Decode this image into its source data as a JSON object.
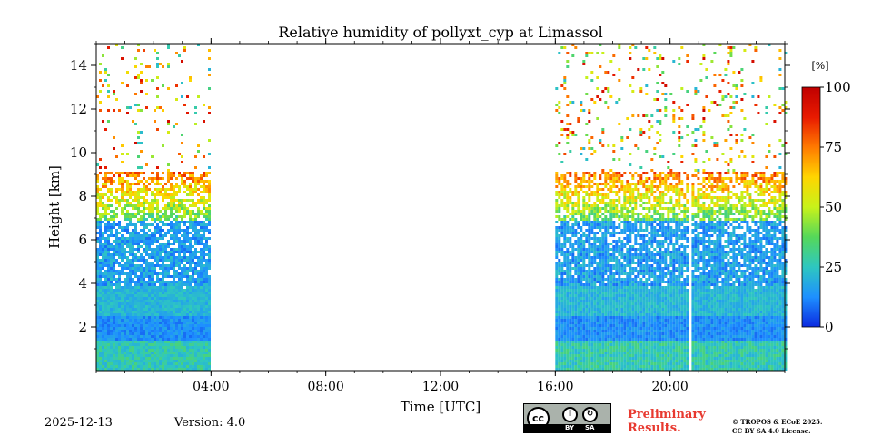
{
  "chart_data": {
    "type": "heatmap",
    "title": "Relative humidity of pollyxt_cyp at Limassol",
    "xlabel": "Time [UTC]",
    "ylabel": "Height [km]",
    "xlim_hours": [
      0,
      24
    ],
    "ylim_km": [
      0,
      15
    ],
    "x_ticks": [
      {
        "hour": 4,
        "label": "04:00"
      },
      {
        "hour": 8,
        "label": "08:00"
      },
      {
        "hour": 12,
        "label": "12:00"
      },
      {
        "hour": 16,
        "label": "16:00"
      },
      {
        "hour": 20,
        "label": "20:00"
      }
    ],
    "y_ticks": [
      {
        "km": 2,
        "label": "2"
      },
      {
        "km": 4,
        "label": "4"
      },
      {
        "km": 6,
        "label": "6"
      },
      {
        "km": 8,
        "label": "8"
      },
      {
        "km": 10,
        "label": "10"
      },
      {
        "km": 12,
        "label": "12"
      },
      {
        "km": 14,
        "label": "14"
      }
    ],
    "data_segments": [
      {
        "start_hour": 0.0,
        "end_hour": 4.0
      },
      {
        "start_hour": 16.0,
        "end_hour": 20.58
      },
      {
        "start_hour": 20.75,
        "end_hour": 24.0
      }
    ],
    "moist_layers_km": [
      {
        "center": 0.9,
        "rh": 30
      },
      {
        "center": 3.2,
        "rh": 22
      },
      {
        "center": 8.5,
        "rh": 65
      }
    ],
    "colorbar": {
      "unit": "[%]",
      "min": 0,
      "max": 100,
      "ticks": [
        {
          "value": 0,
          "label": "0"
        },
        {
          "value": 25,
          "label": "25"
        },
        {
          "value": 50,
          "label": "50"
        },
        {
          "value": 75,
          "label": "75"
        },
        {
          "value": 100,
          "label": "100"
        }
      ],
      "colors": [
        "#0b2ae0",
        "#1e90ff",
        "#2ec7c0",
        "#55d85a",
        "#c8f21a",
        "#ffd500",
        "#ff7a00",
        "#e81a00",
        "#c00000"
      ]
    }
  },
  "footer": {
    "date": "2025-12-13",
    "version": "Version: 4.0",
    "preliminary_line1": "Preliminary",
    "preliminary_line2": "Results.",
    "copyright_line1": "© TROPOS & ECoE 2025.",
    "copyright_line2": "CC BY SA 4.0 License.",
    "license_badge_cc": "cc",
    "license_badge_by": "BY",
    "license_badge_sa": "SA"
  }
}
